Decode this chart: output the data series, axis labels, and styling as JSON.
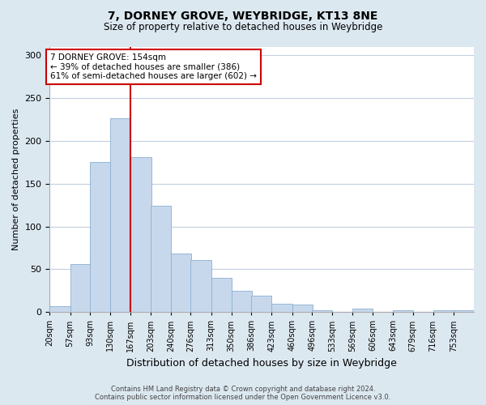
{
  "title": "7, DORNEY GROVE, WEYBRIDGE, KT13 8NE",
  "subtitle": "Size of property relative to detached houses in Weybridge",
  "xlabel": "Distribution of detached houses by size in Weybridge",
  "ylabel": "Number of detached properties",
  "footer_line1": "Contains HM Land Registry data © Crown copyright and database right 2024.",
  "footer_line2": "Contains public sector information licensed under the Open Government Licence v3.0.",
  "bar_labels": [
    "20sqm",
    "57sqm",
    "93sqm",
    "130sqm",
    "167sqm",
    "203sqm",
    "240sqm",
    "276sqm",
    "313sqm",
    "350sqm",
    "386sqm",
    "423sqm",
    "460sqm",
    "496sqm",
    "533sqm",
    "569sqm",
    "606sqm",
    "643sqm",
    "679sqm",
    "716sqm",
    "753sqm"
  ],
  "bar_values": [
    7,
    56,
    175,
    226,
    181,
    124,
    68,
    61,
    40,
    25,
    19,
    10,
    9,
    2,
    0,
    4,
    0,
    2,
    0,
    2,
    2
  ],
  "bar_color": "#c8d8ec",
  "bar_edge_color": "#8aafd0",
  "annotation_box_text": "7 DORNEY GROVE: 154sqm\n← 39% of detached houses are smaller (386)\n61% of semi-detached houses are larger (602) →",
  "annotation_box_color": "#ffffff",
  "annotation_box_edge_color": "#cc0000",
  "vline_color": "#cc0000",
  "ylim": [
    0,
    310
  ],
  "bin_width": 37,
  "background_color": "#dce8f0",
  "plot_bg_color": "#ffffff",
  "grid_color": "#c0d0e0",
  "left_edges": [
    20,
    57,
    93,
    130,
    167,
    203,
    240,
    276,
    313,
    350,
    386,
    423,
    460,
    496,
    533,
    569,
    606,
    643,
    679,
    716,
    753
  ],
  "vline_x_index": 4
}
